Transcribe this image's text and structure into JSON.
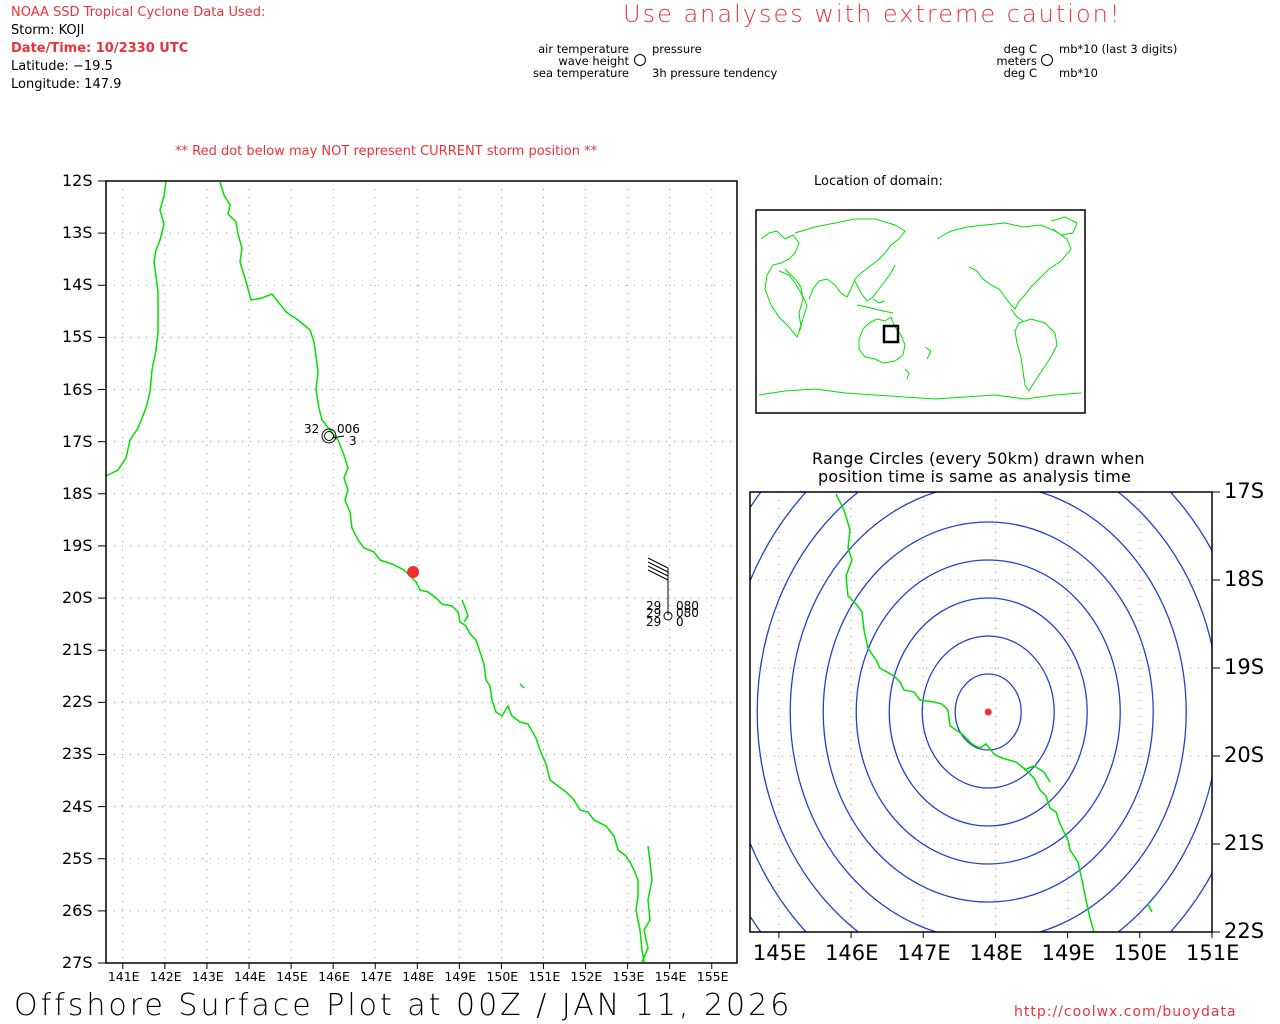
{
  "header": {
    "source": "NOAA SSD Tropical Cyclone Data Used:",
    "storm": "Storm: KOJI",
    "datetime": "Date/Time: 10/2330 UTC",
    "latitude": "Latitude: −19.5",
    "longitude": "Longitude: 147.9"
  },
  "caution": "Use analyses with extreme caution!",
  "legend": {
    "left": {
      "top_left": "air temperature",
      "mid_left": "wave height",
      "bottom_left": "sea temperature",
      "top_right": "pressure",
      "bottom_right": "3h pressure tendency"
    },
    "right": {
      "top_left": "deg C",
      "mid_left": "meters",
      "bottom_left": "deg C",
      "top_right": "mb*10 (last 3 digits)",
      "bottom_right": "mb*10"
    }
  },
  "warning": "** Red dot below may NOT represent CURRENT storm position **",
  "main_map": {
    "lat_labels": [
      "12S",
      "13S",
      "14S",
      "15S",
      "16S",
      "17S",
      "18S",
      "19S",
      "20S",
      "21S",
      "22S",
      "23S",
      "24S",
      "25S",
      "26S",
      "27S"
    ],
    "lon_labels": [
      "141E",
      "142E",
      "143E",
      "144E",
      "145E",
      "146E",
      "147E",
      "148E",
      "149E",
      "150E",
      "151E",
      "152E",
      "153E",
      "154E",
      "155E"
    ],
    "station1": {
      "temp": "32",
      "pressure": "006",
      "tendency": "3"
    },
    "station2": {
      "temp": "29",
      "pressure": "080",
      "wave": "29",
      "tendency": "080",
      "sea": "29",
      "sea2": "0"
    },
    "storm_lat": -19.5,
    "storm_lon": 147.9
  },
  "domain": {
    "title": "Location of domain:"
  },
  "range": {
    "title_line1": "Range Circles (every 50km) drawn when",
    "title_line2": "position time is same as analysis time",
    "lat_labels": [
      "17S",
      "18S",
      "19S",
      "20S",
      "21S",
      "22S"
    ],
    "lon_labels": [
      "145E",
      "146E",
      "147E",
      "148E",
      "149E",
      "150E",
      "151E"
    ],
    "circle_count": 9
  },
  "footer": {
    "title": "Offshore Surface Plot at 00Z / JAN 11, 2026",
    "url": "http://coolwx.com/buoydata"
  },
  "colors": {
    "coast": "#00e000",
    "storm": "#f03030",
    "circle": "#2040d0",
    "accent": "#e8333b"
  }
}
